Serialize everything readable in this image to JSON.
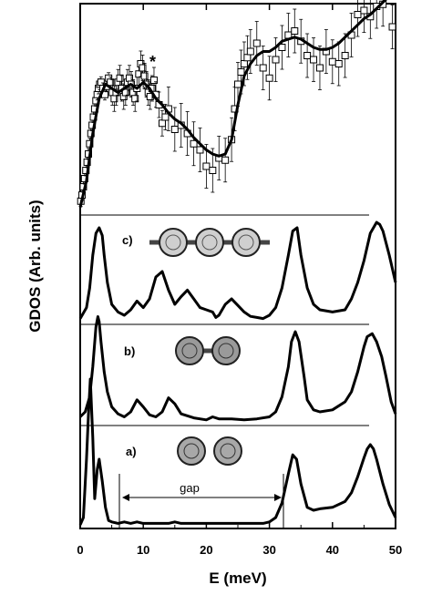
{
  "chart_data": {
    "type": "line",
    "xlabel": "E (meV)",
    "ylabel": "GDOS (Arb. units)",
    "xlim": [
      0,
      50
    ],
    "x_ticks": [
      "0",
      "10",
      "20",
      "30",
      "40",
      "50"
    ],
    "grid": false,
    "annotations": {
      "star": "*",
      "gap_label": "gap",
      "gap_range": [
        6,
        30.5
      ]
    },
    "panels": [
      {
        "label": "a)",
        "molecule_icon": "monomer-c60-icon",
        "x": [
          0,
          0.5,
          1,
          1.3,
          1.6,
          2,
          2.3,
          2.7,
          3,
          3.5,
          4,
          4.5,
          5,
          6,
          7,
          8,
          9,
          10,
          11,
          12,
          13,
          14,
          15,
          16,
          18,
          20,
          22,
          24,
          26,
          28,
          29,
          30,
          31,
          32,
          33,
          33.7,
          34.3,
          35,
          36,
          37,
          38,
          40,
          42,
          43,
          44,
          45,
          45.5,
          46,
          46.5,
          47,
          48,
          49,
          50
        ],
        "y": [
          0,
          0.05,
          0.45,
          0.75,
          1.0,
          0.6,
          0.18,
          0.38,
          0.45,
          0.3,
          0.12,
          0.03,
          0.02,
          0.01,
          0.02,
          0.01,
          0.02,
          0.01,
          0.01,
          0.01,
          0.01,
          0.01,
          0.02,
          0.01,
          0.01,
          0.01,
          0.01,
          0.01,
          0.01,
          0.01,
          0.01,
          0.02,
          0.05,
          0.15,
          0.35,
          0.48,
          0.45,
          0.28,
          0.12,
          0.1,
          0.11,
          0.12,
          0.16,
          0.22,
          0.33,
          0.46,
          0.52,
          0.55,
          0.52,
          0.45,
          0.28,
          0.14,
          0.05
        ]
      },
      {
        "label": "b)",
        "molecule_icon": "dimer-c60-icon",
        "x": [
          0,
          0.8,
          1.5,
          2,
          2.5,
          2.8,
          3,
          3.3,
          3.8,
          4.3,
          5,
          6,
          7,
          8,
          9,
          10,
          11,
          12,
          13,
          14,
          15,
          16,
          18,
          20,
          21,
          22,
          23,
          24,
          26,
          28,
          30,
          31,
          32,
          33,
          33.5,
          34.1,
          34.7,
          35.5,
          36,
          37,
          38,
          40,
          42,
          43,
          44,
          45,
          45.5,
          46.3,
          47,
          47.8,
          48.5,
          49.3,
          50
        ],
        "y": [
          0.05,
          0.1,
          0.25,
          0.55,
          0.95,
          1.05,
          1.0,
          0.8,
          0.5,
          0.3,
          0.15,
          0.08,
          0.05,
          0.1,
          0.22,
          0.15,
          0.07,
          0.05,
          0.1,
          0.24,
          0.18,
          0.08,
          0.04,
          0.02,
          0.05,
          0.03,
          0.03,
          0.03,
          0.02,
          0.03,
          0.05,
          0.1,
          0.25,
          0.55,
          0.8,
          0.9,
          0.8,
          0.45,
          0.22,
          0.12,
          0.1,
          0.12,
          0.2,
          0.3,
          0.5,
          0.75,
          0.85,
          0.88,
          0.8,
          0.65,
          0.45,
          0.2,
          0.08
        ]
      },
      {
        "label": "c)",
        "molecule_icon": "trimer-c60-icon",
        "x": [
          0,
          1,
          1.5,
          2,
          2.5,
          3,
          3.5,
          3.8,
          4.3,
          5,
          6,
          7,
          8,
          9,
          10,
          11,
          12,
          13,
          14,
          15,
          16,
          17,
          18,
          19,
          20,
          21,
          21.5,
          22,
          23,
          24,
          25,
          26,
          27,
          28,
          29,
          30,
          31,
          32,
          33,
          33.7,
          34.4,
          35,
          36,
          37,
          38,
          40,
          42,
          43,
          44,
          45,
          46,
          47,
          47.5,
          48,
          49,
          50
        ],
        "y": [
          0.02,
          0.12,
          0.3,
          0.6,
          0.8,
          0.85,
          0.78,
          0.6,
          0.35,
          0.15,
          0.08,
          0.05,
          0.1,
          0.18,
          0.12,
          0.2,
          0.4,
          0.45,
          0.28,
          0.15,
          0.22,
          0.28,
          0.2,
          0.12,
          0.1,
          0.08,
          0.03,
          0.05,
          0.15,
          0.2,
          0.14,
          0.08,
          0.04,
          0.03,
          0.02,
          0.05,
          0.12,
          0.3,
          0.6,
          0.82,
          0.85,
          0.6,
          0.3,
          0.15,
          0.1,
          0.08,
          0.1,
          0.2,
          0.35,
          0.55,
          0.8,
          0.9,
          0.88,
          0.82,
          0.6,
          0.35
        ]
      }
    ],
    "experiment": {
      "name": "experiment",
      "x": [
        0.1,
        0.3,
        0.5,
        0.7,
        0.9,
        1.1,
        1.3,
        1.5,
        1.7,
        1.9,
        2.1,
        2.3,
        2.5,
        2.7,
        2.9,
        3.1,
        3.3,
        3.6,
        3.9,
        4.2,
        4.5,
        4.8,
        5.1,
        5.4,
        5.7,
        6.0,
        6.3,
        6.6,
        6.9,
        7.2,
        7.5,
        7.8,
        8.1,
        8.4,
        8.7,
        9.0,
        9.3,
        9.6,
        9.9,
        10.2,
        10.5,
        10.8,
        11.1,
        11.4,
        11.7,
        12.0,
        12.5,
        13.0,
        13.5,
        14.0,
        15,
        16,
        17,
        18,
        19,
        20,
        21,
        22,
        23,
        24,
        24.5,
        25,
        25.5,
        26,
        26.5,
        27,
        28,
        29,
        30,
        31,
        32,
        33,
        34,
        35,
        36,
        37,
        38,
        39,
        40,
        41,
        42,
        43,
        44,
        45,
        46,
        47,
        48,
        49.5
      ],
      "y": [
        0.05,
        0.08,
        0.12,
        0.16,
        0.2,
        0.24,
        0.28,
        0.33,
        0.38,
        0.42,
        0.46,
        0.5,
        0.54,
        0.57,
        0.6,
        0.62,
        0.63,
        0.6,
        0.57,
        0.61,
        0.65,
        0.63,
        0.58,
        0.55,
        0.58,
        0.63,
        0.65,
        0.6,
        0.56,
        0.58,
        0.63,
        0.65,
        0.62,
        0.58,
        0.55,
        0.6,
        0.67,
        0.72,
        0.7,
        0.66,
        0.62,
        0.58,
        0.56,
        0.6,
        0.64,
        0.57,
        0.52,
        0.43,
        0.46,
        0.5,
        0.4,
        0.42,
        0.38,
        0.33,
        0.3,
        0.22,
        0.2,
        0.26,
        0.25,
        0.35,
        0.5,
        0.62,
        0.68,
        0.72,
        0.75,
        0.78,
        0.82,
        0.7,
        0.65,
        0.74,
        0.8,
        0.86,
        0.88,
        0.83,
        0.76,
        0.74,
        0.7,
        0.78,
        0.73,
        0.72,
        0.76,
        0.86,
        0.96,
        0.98,
        0.95,
        1.0,
        1.01,
        0.9
      ]
    },
    "experiment_fit": {
      "name": "fit",
      "x": [
        0,
        1,
        2,
        3,
        4,
        5,
        6,
        7,
        8,
        9,
        10,
        11,
        12,
        13,
        14,
        15,
        16,
        17,
        18,
        19,
        20,
        21,
        22,
        23,
        24,
        25,
        26,
        27,
        28,
        29,
        30,
        31,
        32,
        33,
        34,
        35,
        36,
        37,
        38,
        39,
        40,
        41,
        42,
        43,
        44,
        45,
        46,
        47,
        48,
        49,
        50
      ],
      "y": [
        0.02,
        0.15,
        0.38,
        0.55,
        0.62,
        0.6,
        0.58,
        0.6,
        0.62,
        0.6,
        0.63,
        0.6,
        0.55,
        0.52,
        0.48,
        0.45,
        0.43,
        0.4,
        0.36,
        0.33,
        0.3,
        0.28,
        0.27,
        0.28,
        0.35,
        0.52,
        0.66,
        0.72,
        0.76,
        0.78,
        0.78,
        0.8,
        0.83,
        0.84,
        0.85,
        0.84,
        0.82,
        0.8,
        0.79,
        0.79,
        0.8,
        0.82,
        0.85,
        0.88,
        0.91,
        0.94,
        0.96,
        0.99,
        1.02,
        1.05,
        1.08
      ]
    }
  }
}
